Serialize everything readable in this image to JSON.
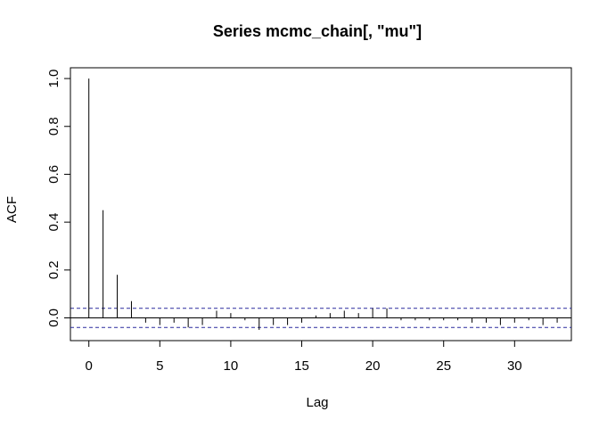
{
  "chart_data": {
    "type": "bar",
    "title": "Series  mcmc_chain[, \"mu\"]",
    "xlabel": "Lag",
    "ylabel": "ACF",
    "xlim": [
      -1.3,
      34.0
    ],
    "ylim": [
      -0.095,
      1.045
    ],
    "x_ticks": [
      0,
      5,
      10,
      15,
      20,
      25,
      30
    ],
    "y_ticks": [
      0.0,
      0.2,
      0.4,
      0.6,
      0.8,
      1.0
    ],
    "y_tick_labels": [
      "0.0",
      "0.2",
      "0.4",
      "0.6",
      "0.8",
      "1.0"
    ],
    "confidence_bound": 0.04,
    "series": [
      {
        "lags": [
          0,
          1,
          2,
          3,
          4,
          5,
          6,
          7,
          8,
          9,
          10,
          11,
          12,
          13,
          14,
          15,
          16,
          17,
          18,
          19,
          20,
          21,
          22,
          23,
          24,
          25,
          26,
          27,
          28,
          29,
          30,
          31,
          32,
          33
        ],
        "values": [
          1.0,
          0.45,
          0.18,
          0.07,
          -0.02,
          -0.03,
          -0.02,
          -0.04,
          -0.03,
          0.03,
          0.02,
          -0.01,
          -0.05,
          -0.03,
          -0.03,
          -0.02,
          0.01,
          0.02,
          0.03,
          0.02,
          0.04,
          0.04,
          -0.01,
          -0.01,
          -0.01,
          -0.01,
          -0.01,
          -0.02,
          -0.02,
          -0.03,
          -0.02,
          -0.01,
          -0.03,
          -0.02
        ]
      }
    ],
    "grid": false,
    "legend": "none"
  }
}
